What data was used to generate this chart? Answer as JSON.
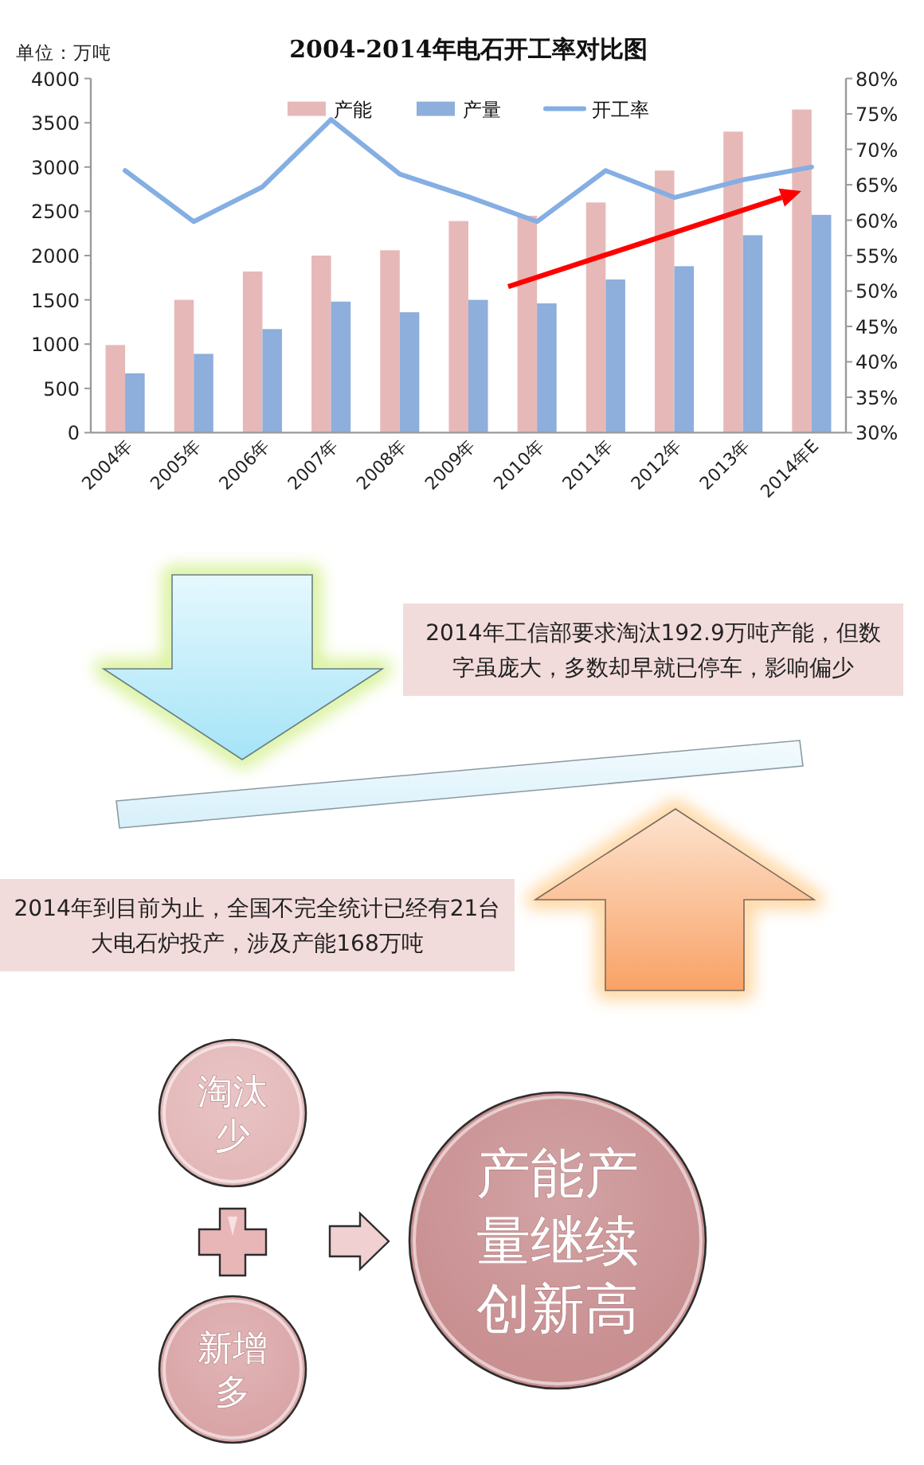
{
  "chart_data": [
    {
      "type": "bar",
      "title": "2004-2014年电石开工率对比图",
      "ylabel": "单位：万吨",
      "categories": [
        "2004年",
        "2005年",
        "2006年",
        "2007年",
        "2008年",
        "2009年",
        "2010年",
        "2011年",
        "2012年",
        "2013年",
        "2014年E"
      ],
      "series": [
        {
          "name": "产能",
          "color": "#e6b9b8",
          "values": [
            990,
            1500,
            1820,
            2000,
            2060,
            2390,
            2450,
            2600,
            2960,
            3400,
            3650
          ]
        },
        {
          "name": "产量",
          "color": "#8eaedb",
          "values": [
            670,
            890,
            1170,
            1480,
            1360,
            1500,
            1460,
            1730,
            1880,
            2230,
            2460
          ]
        },
        {
          "name": "开工率",
          "type": "line",
          "axis": "y2",
          "color": "#85aee3",
          "values": [
            67.0,
            59.8,
            64.7,
            74.2,
            66.5,
            63.3,
            59.8,
            67.0,
            63.2,
            65.7,
            67.5
          ]
        }
      ],
      "ylim": [
        0,
        4000
      ],
      "yticks": [
        0,
        500,
        1000,
        1500,
        2000,
        2500,
        3000,
        3500,
        4000
      ],
      "y2lim": [
        30,
        80
      ],
      "y2ticks": [
        {
          "value": 30,
          "label": "30%"
        },
        {
          "value": 35,
          "label": "35%"
        },
        {
          "value": 40,
          "label": "40%"
        },
        {
          "value": 45,
          "label": "45%"
        },
        {
          "value": 50,
          "label": "50%"
        },
        {
          "value": 55,
          "label": "55%"
        },
        {
          "value": 60,
          "label": "60%"
        },
        {
          "value": 65,
          "label": "65%"
        },
        {
          "value": 70,
          "label": "70%"
        },
        {
          "value": 75,
          "label": "75%"
        },
        {
          "value": 80,
          "label": "80%"
        }
      ],
      "legend": "top",
      "grid": false
    },
    {
      "type": "other",
      "annotations": [
        "2014年工信部要求淘汰192.9万吨产能，但数字虽庞大，多数却早就已停车，影响偏少",
        "2014年到目前为止，全国不完全统计已经有21台大电石炉投产，涉及产能168万吨",
        "淘汰少",
        "新增多",
        "产能产量继续创新高"
      ]
    }
  ]
}
